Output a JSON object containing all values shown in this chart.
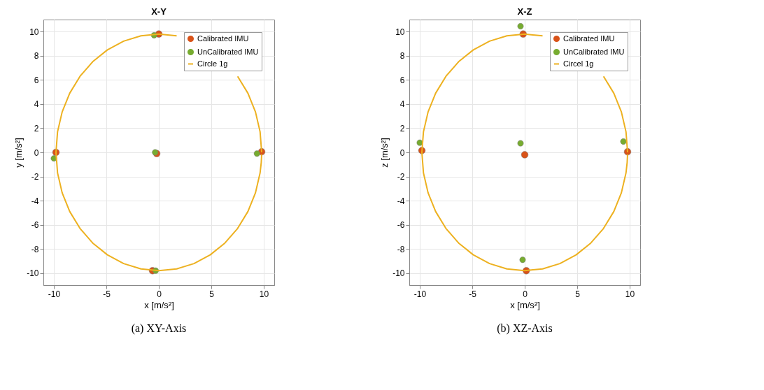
{
  "chart_data": [
    {
      "type": "scatter",
      "title": "X-Y",
      "xlabel": "x [m/s²]",
      "ylabel": "y [m/s²]",
      "xlim": [
        -11,
        11
      ],
      "ylim": [
        -11,
        11
      ],
      "xticks": [
        -10,
        -5,
        0,
        5,
        10
      ],
      "yticks": [
        -10,
        -8,
        -6,
        -4,
        -2,
        0,
        2,
        4,
        6,
        8,
        10
      ],
      "grid": true,
      "legend": "top right",
      "annotations": [
        "(a)  XY-Axis"
      ],
      "series": [
        {
          "name": "Calibrated IMU",
          "color": "#d95319",
          "type": "scatter",
          "marker": "circle",
          "x": [
            0.0,
            -9.8,
            9.8,
            -0.2,
            -0.6
          ],
          "values": [
            9.8,
            0.0,
            0.05,
            -0.1,
            -9.8
          ]
        },
        {
          "name": "UnCalibrated IMU",
          "color": "#77ac30",
          "type": "scatter",
          "marker": "circle",
          "x": [
            -0.45,
            -10.0,
            9.35,
            -0.35,
            -0.3
          ],
          "values": [
            9.7,
            -0.5,
            -0.1,
            0.0,
            -9.8
          ]
        },
        {
          "name": "Circle 1g",
          "color": "#edb120",
          "type": "line",
          "x": [
            9.8,
            9.65,
            9.21,
            8.49,
            7.51,
            6.3,
            4.9,
            3.35,
            1.7,
            0.0,
            -1.7,
            -3.35,
            -4.9,
            -6.3,
            -7.51,
            -8.49,
            -9.21,
            -9.65,
            -9.8,
            -9.65,
            -9.21,
            -8.49,
            -7.51,
            -6.3,
            -4.9,
            -3.35,
            -1.7,
            0.0,
            1.7,
            3.35,
            4.9,
            6.3,
            7.51,
            8.49,
            9.21,
            9.65,
            9.76,
            9.8
          ],
          "values": [
            0.0,
            1.7,
            3.35,
            4.9,
            6.3,
            null,
            null,
            null,
            9.65,
            9.8,
            9.65,
            9.21,
            8.49,
            7.51,
            6.3,
            4.9,
            3.35,
            1.7,
            0.0,
            -1.7,
            -3.35,
            -4.9,
            -6.3,
            -7.51,
            -8.49,
            -9.21,
            -9.65,
            -9.8,
            -9.65,
            -9.21,
            -8.49,
            -7.51,
            -6.3,
            -4.9,
            -3.35,
            -1.7,
            -0.85,
            -0.17
          ]
        }
      ]
    },
    {
      "type": "scatter",
      "title": "X-Z",
      "xlabel": "x [m/s²]",
      "ylabel": "z [m/s²]",
      "xlim": [
        -11,
        11
      ],
      "ylim": [
        -11,
        11
      ],
      "xticks": [
        -10,
        -5,
        0,
        5,
        10
      ],
      "yticks": [
        -10,
        -8,
        -6,
        -4,
        -2,
        0,
        2,
        4,
        6,
        8,
        10
      ],
      "grid": true,
      "legend": "top right",
      "annotations": [
        "(b)  XZ-Axis"
      ],
      "series": [
        {
          "name": "Calibrated IMU",
          "color": "#d95319",
          "type": "scatter",
          "marker": "circle",
          "x": [
            -0.15,
            -9.8,
            9.8,
            0.0,
            0.15
          ],
          "values": [
            9.8,
            0.15,
            0.05,
            -0.2,
            -9.8
          ]
        },
        {
          "name": "UnCalibrated IMU",
          "color": "#77ac30",
          "type": "scatter",
          "marker": "circle",
          "x": [
            -0.4,
            -10.0,
            9.4,
            -0.4,
            -0.2
          ],
          "values": [
            10.45,
            0.8,
            0.9,
            0.75,
            -8.9
          ]
        },
        {
          "name": "Circel 1g",
          "color": "#edb120",
          "type": "line",
          "x": [
            9.8,
            9.65,
            9.21,
            8.49,
            7.51,
            6.3,
            4.9,
            3.35,
            1.7,
            0.0,
            -1.7,
            -3.35,
            -4.9,
            -6.3,
            -7.51,
            -8.49,
            -9.21,
            -9.65,
            -9.8,
            -9.65,
            -9.21,
            -8.49,
            -7.51,
            -6.3,
            -4.9,
            -3.35,
            -1.7,
            0.0,
            1.7,
            3.35,
            4.9,
            6.3,
            7.51,
            8.49,
            9.21,
            9.65,
            9.76,
            9.8
          ],
          "values": [
            0.0,
            1.7,
            3.35,
            4.9,
            6.3,
            null,
            null,
            null,
            9.65,
            9.8,
            9.65,
            9.21,
            8.49,
            7.51,
            6.3,
            4.9,
            3.35,
            1.7,
            0.0,
            -1.7,
            -3.35,
            -4.9,
            -6.3,
            -7.51,
            -8.49,
            -9.21,
            -9.65,
            -9.8,
            -9.65,
            -9.21,
            -8.49,
            -7.51,
            -6.3,
            -4.9,
            -3.35,
            -1.7,
            -0.85,
            -0.17
          ]
        }
      ]
    }
  ]
}
